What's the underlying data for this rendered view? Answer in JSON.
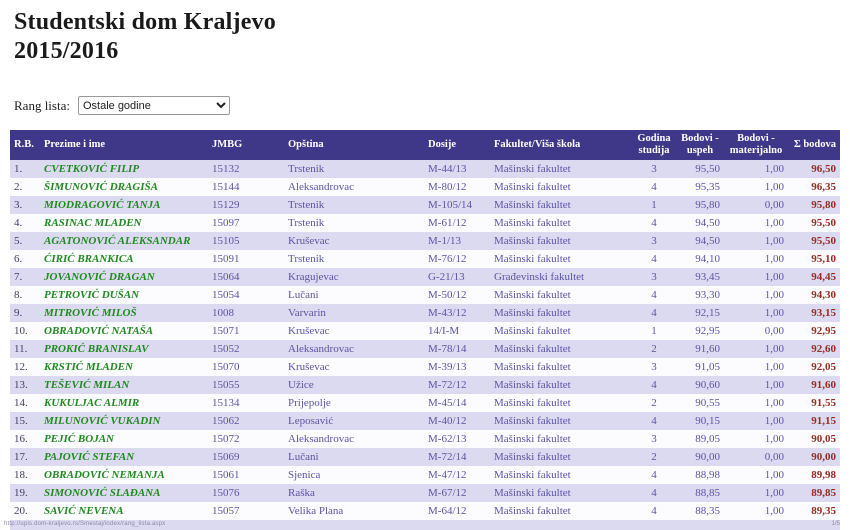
{
  "page": {
    "title_line1": "Studentski dom Kraljevo",
    "title_line2": "2015/2016"
  },
  "filter": {
    "label": "Rang lista:",
    "selected_option": "Ostale godine"
  },
  "table": {
    "columns": [
      "R.B.",
      "Prezime i ime",
      "JMBG",
      "Opština",
      "Dosije",
      "Fakultet/Viša škola",
      "Godina studija",
      "Bodovi - uspeh",
      "Bodovi - materijalno",
      "Σ bodova"
    ],
    "rows": [
      {
        "rb": "1.",
        "name": "CVETKOVIĆ FILIP",
        "jmbg": "15132",
        "opstina": "Trstenik",
        "dosije": "M-44/13",
        "fakultet": "Mašinski fakultet",
        "godina": "3",
        "uspeh": "95,50",
        "materijalno": "1,00",
        "suma": "96,50"
      },
      {
        "rb": "2.",
        "name": "ŠIMUNOVIĆ DRAGIŠA",
        "jmbg": "15144",
        "opstina": "Aleksandrovac",
        "dosije": "M-80/12",
        "fakultet": "Mašinski fakultet",
        "godina": "4",
        "uspeh": "95,35",
        "materijalno": "1,00",
        "suma": "96,35"
      },
      {
        "rb": "3.",
        "name": "MIODRAGOVIĆ TANJA",
        "jmbg": "15129",
        "opstina": "Trstenik",
        "dosije": "M-105/14",
        "fakultet": "Mašinski fakultet",
        "godina": "1",
        "uspeh": "95,80",
        "materijalno": "0,00",
        "suma": "95,80"
      },
      {
        "rb": "4.",
        "name": "RASINAC MLADEN",
        "jmbg": "15097",
        "opstina": "Trstenik",
        "dosije": "M-61/12",
        "fakultet": "Mašinski fakultet",
        "godina": "4",
        "uspeh": "94,50",
        "materijalno": "1,00",
        "suma": "95,50"
      },
      {
        "rb": "5.",
        "name": "AGATONOVIĆ ALEKSANDAR",
        "jmbg": "15105",
        "opstina": "Kruševac",
        "dosije": "M-1/13",
        "fakultet": "Mašinski fakultet",
        "godina": "3",
        "uspeh": "94,50",
        "materijalno": "1,00",
        "suma": "95,50"
      },
      {
        "rb": "6.",
        "name": "ĆIRIĆ BRANKICA",
        "jmbg": "15091",
        "opstina": "Trstenik",
        "dosije": "M-76/12",
        "fakultet": "Mašinski fakultet",
        "godina": "4",
        "uspeh": "94,10",
        "materijalno": "1,00",
        "suma": "95,10"
      },
      {
        "rb": "7.",
        "name": "JOVANOVIĆ DRAGAN",
        "jmbg": "15064",
        "opstina": "Kragujevac",
        "dosije": "G-21/13",
        "fakultet": "Građevinski fakultet",
        "godina": "3",
        "uspeh": "93,45",
        "materijalno": "1,00",
        "suma": "94,45"
      },
      {
        "rb": "8.",
        "name": "PETROVIĆ DUŠAN",
        "jmbg": "15054",
        "opstina": "Lučani",
        "dosije": "M-50/12",
        "fakultet": "Mašinski fakultet",
        "godina": "4",
        "uspeh": "93,30",
        "materijalno": "1,00",
        "suma": "94,30"
      },
      {
        "rb": "9.",
        "name": "MITROVIĆ MILOŠ",
        "jmbg": "1008",
        "opstina": "Varvarin",
        "dosije": "M-43/12",
        "fakultet": "Mašinski fakultet",
        "godina": "4",
        "uspeh": "92,15",
        "materijalno": "1,00",
        "suma": "93,15"
      },
      {
        "rb": "10.",
        "name": "OBRADOVIĆ NATAŠA",
        "jmbg": "15071",
        "opstina": "Kruševac",
        "dosije": "14/I-M",
        "fakultet": "Mašinski fakultet",
        "godina": "1",
        "uspeh": "92,95",
        "materijalno": "0,00",
        "suma": "92,95"
      },
      {
        "rb": "11.",
        "name": "PROKIĆ BRANISLAV",
        "jmbg": "15052",
        "opstina": "Aleksandrovac",
        "dosije": "M-78/14",
        "fakultet": "Mašinski fakultet",
        "godina": "2",
        "uspeh": "91,60",
        "materijalno": "1,00",
        "suma": "92,60"
      },
      {
        "rb": "12.",
        "name": "KRSTIĆ MLADEN",
        "jmbg": "15070",
        "opstina": "Kruševac",
        "dosije": "M-39/13",
        "fakultet": "Mašinski fakultet",
        "godina": "3",
        "uspeh": "91,05",
        "materijalno": "1,00",
        "suma": "92,05"
      },
      {
        "rb": "13.",
        "name": "TEŠEVIĆ MILAN",
        "jmbg": "15055",
        "opstina": "Užice",
        "dosije": "M-72/12",
        "fakultet": "Mašinski fakultet",
        "godina": "4",
        "uspeh": "90,60",
        "materijalno": "1,00",
        "suma": "91,60"
      },
      {
        "rb": "14.",
        "name": "KUKULJAC ALMIR",
        "jmbg": "15134",
        "opstina": "Prijepolje",
        "dosije": "M-45/14",
        "fakultet": "Mašinski fakultet",
        "godina": "2",
        "uspeh": "90,55",
        "materijalno": "1,00",
        "suma": "91,55"
      },
      {
        "rb": "15.",
        "name": "MILUNOVIĆ VUKADIN",
        "jmbg": "15062",
        "opstina": "Leposavić",
        "dosije": "M-40/12",
        "fakultet": "Mašinski fakultet",
        "godina": "4",
        "uspeh": "90,15",
        "materijalno": "1,00",
        "suma": "91,15"
      },
      {
        "rb": "16.",
        "name": "PEJIĆ BOJAN",
        "jmbg": "15072",
        "opstina": "Aleksandrovac",
        "dosije": "M-62/13",
        "fakultet": "Mašinski fakultet",
        "godina": "3",
        "uspeh": "89,05",
        "materijalno": "1,00",
        "suma": "90,05"
      },
      {
        "rb": "17.",
        "name": "PAJOVIĆ STEFAN",
        "jmbg": "15069",
        "opstina": "Lučani",
        "dosije": "M-72/14",
        "fakultet": "Mašinski fakultet",
        "godina": "2",
        "uspeh": "90,00",
        "materijalno": "0,00",
        "suma": "90,00"
      },
      {
        "rb": "18.",
        "name": "OBRADOVIĆ NEMANJA",
        "jmbg": "15061",
        "opstina": "Sjenica",
        "dosije": "M-47/12",
        "fakultet": "Mašinski fakultet",
        "godina": "4",
        "uspeh": "88,98",
        "materijalno": "1,00",
        "suma": "89,98"
      },
      {
        "rb": "19.",
        "name": "SIMONOVIĆ SLAĐANA",
        "jmbg": "15076",
        "opstina": "Raška",
        "dosije": "M-67/12",
        "fakultet": "Mašinski fakultet",
        "godina": "4",
        "uspeh": "88,85",
        "materijalno": "1,00",
        "suma": "89,85"
      },
      {
        "rb": "20.",
        "name": "SAVIĆ NEVENA",
        "jmbg": "15057",
        "opstina": "Velika Plana",
        "dosije": "M-64/12",
        "fakultet": "Mašinski fakultet",
        "godina": "4",
        "uspeh": "88,35",
        "materijalno": "1,00",
        "suma": "89,35"
      }
    ]
  },
  "footer": {
    "url": "http://upis.dom-kraljevo.rs/Smestaj/index/rang_lista.aspx",
    "page_indicator": "1/5"
  },
  "colors": {
    "header_bg": "#3f3788",
    "header_text": "#ffffff",
    "row_alt": "#dcdaf0",
    "row_base": "#fcfcfe",
    "name_green": "#1f8a1f",
    "value_purple": "#5b54a4",
    "sum_red": "#9b2a20"
  }
}
